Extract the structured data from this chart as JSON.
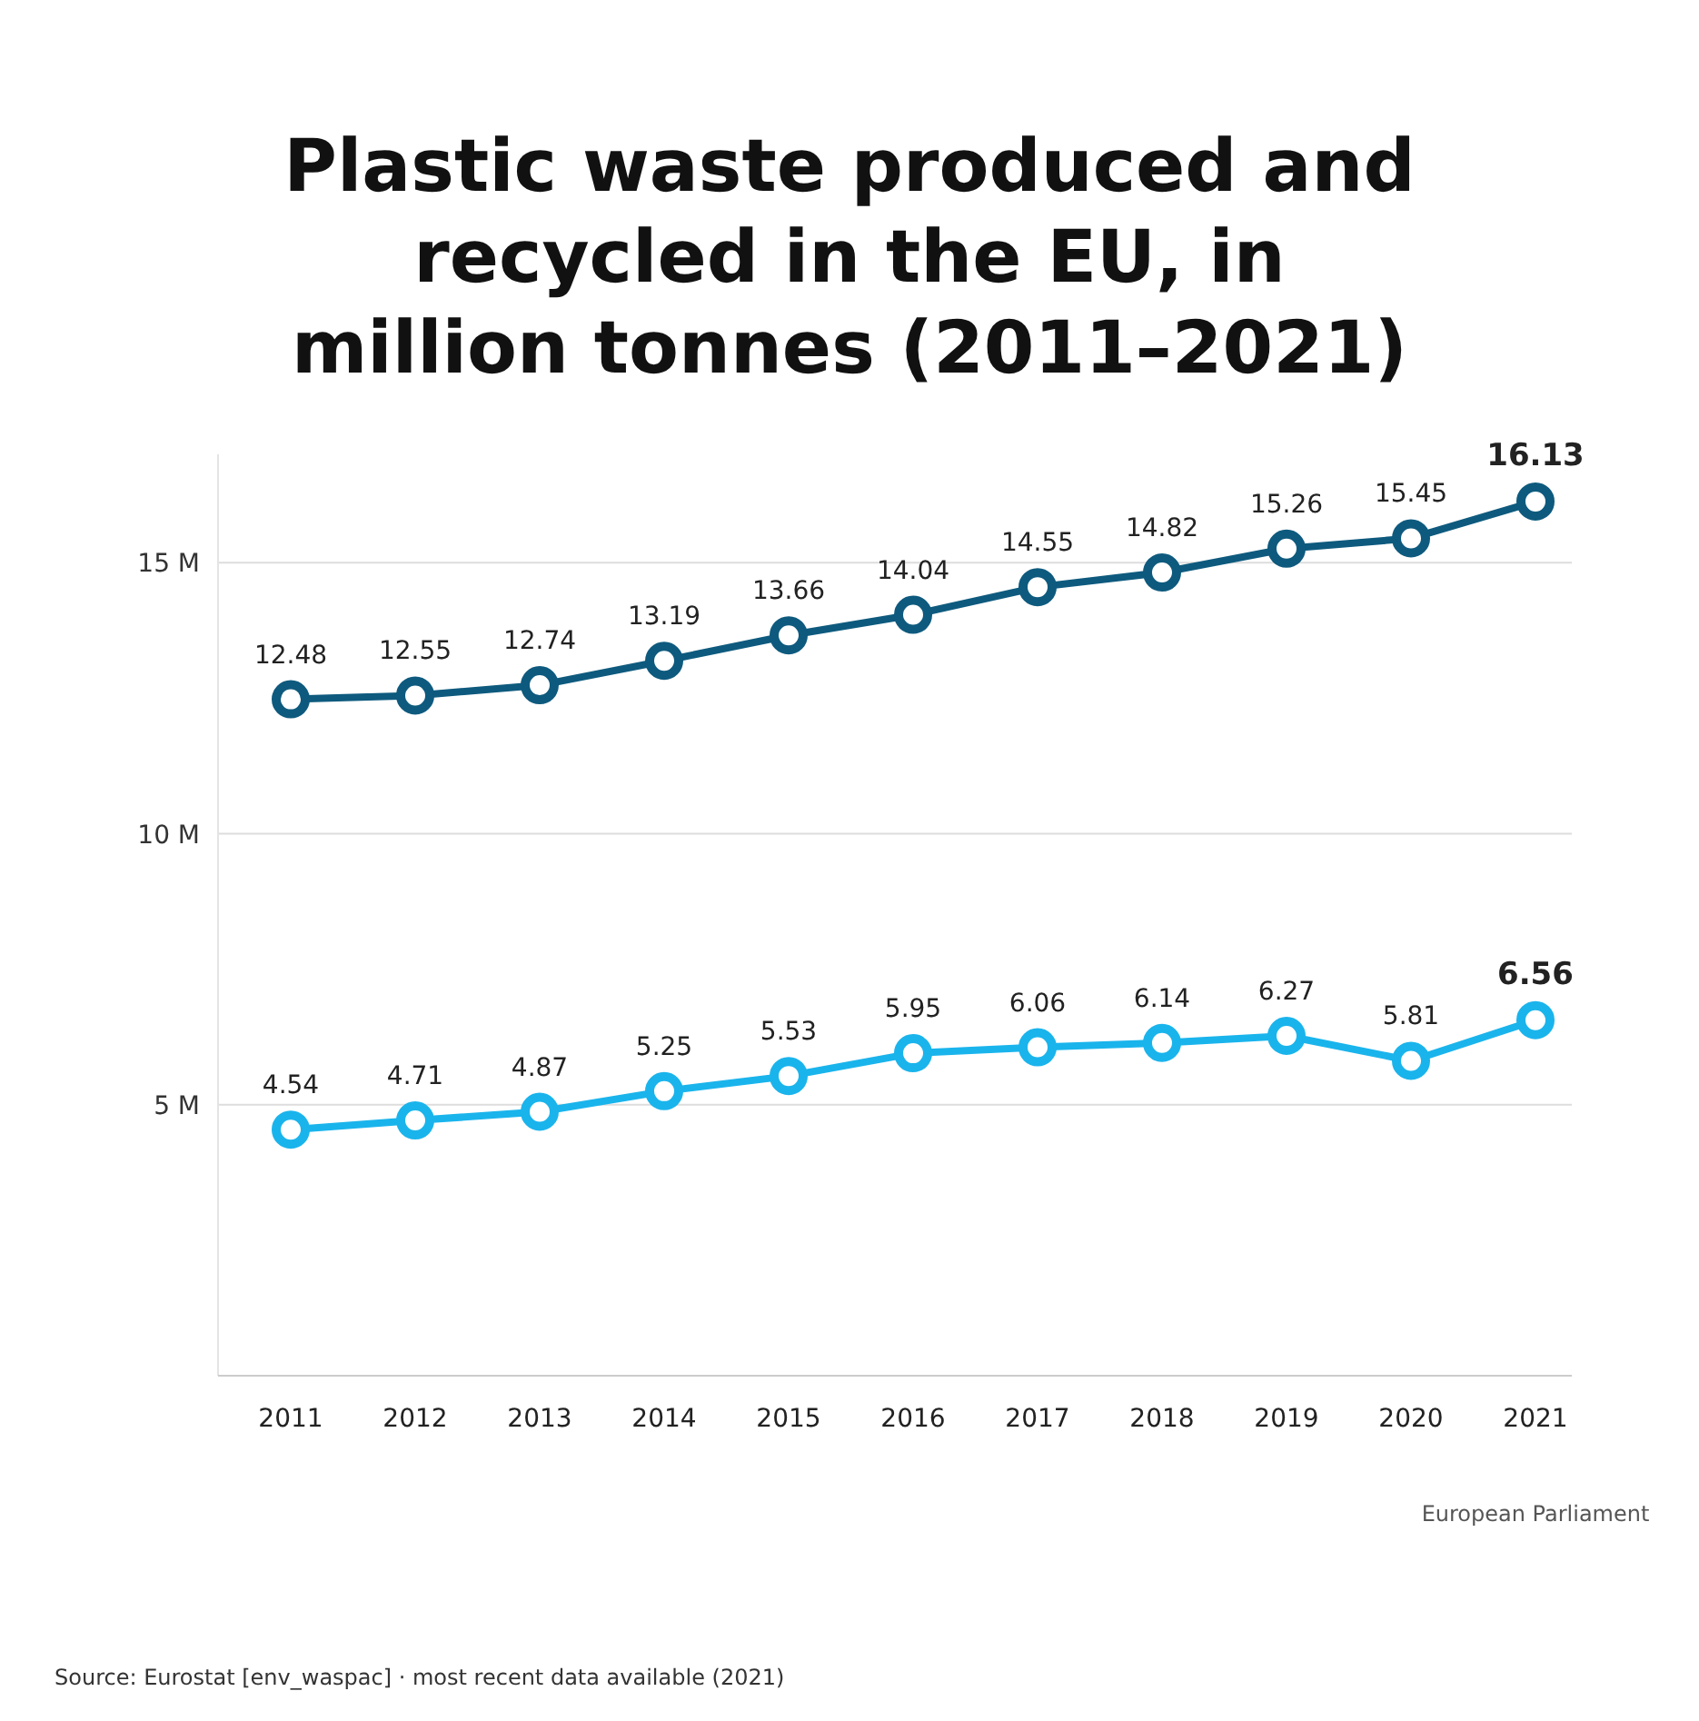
{
  "chart_data": {
    "type": "line",
    "title": "Plastic waste produced and recycled in the EU, in million tonnes (2011–2021)",
    "categories": [
      "2011",
      "2012",
      "2013",
      "2014",
      "2015",
      "2016",
      "2017",
      "2018",
      "2019",
      "2020",
      "2021"
    ],
    "series": [
      {
        "color": "#0e5a7e",
        "values": [
          12.48,
          12.55,
          12.74,
          13.19,
          13.66,
          14.04,
          14.55,
          14.82,
          15.26,
          15.45,
          16.13
        ]
      },
      {
        "color": "#1ab4ec",
        "values": [
          4.54,
          4.71,
          4.87,
          5.25,
          5.53,
          5.95,
          6.06,
          6.14,
          6.27,
          5.81,
          6.56
        ]
      }
    ],
    "ylim": [
      0,
      17
    ],
    "yticks": [
      {
        "value": 5,
        "label": "5 M"
      },
      {
        "value": 10,
        "label": "10 M"
      },
      {
        "value": 15,
        "label": "15 M"
      }
    ],
    "grid": "y",
    "data_labels": true,
    "marker": "circle",
    "line_style": "solid",
    "annotations": [
      "Source: Eurostat [env_waspac] · most recent data available (2021)",
      "European Parliament"
    ]
  }
}
